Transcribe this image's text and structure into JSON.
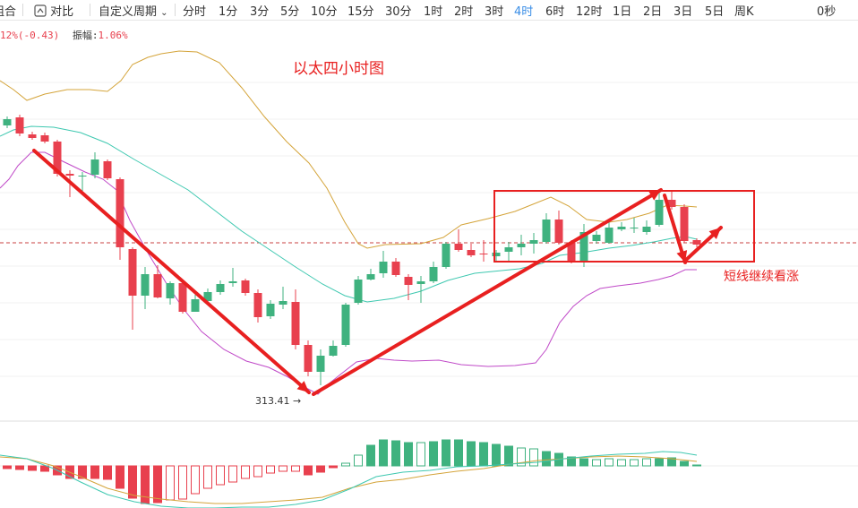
{
  "toolbar": {
    "left_label": "组合",
    "compare_label": "对比",
    "custom_period": "自定义周期",
    "periods": [
      "分时",
      "1分",
      "3分",
      "5分",
      "10分",
      "15分",
      "30分",
      "1时",
      "2时",
      "3时",
      "4时",
      "6时",
      "12时",
      "1日",
      "2日",
      "3日",
      "5日",
      "周K"
    ],
    "active_period": "4时",
    "right_label": "0秒"
  },
  "info": {
    "change": "12%(-0.43)",
    "amplitude_label": "振幅:",
    "amplitude_value": "1.06%"
  },
  "annotations": {
    "title": "以太四小时图",
    "note": "短线继续看涨",
    "low_label": "313.41 →"
  },
  "colors": {
    "up": "#3fb27f",
    "down": "#e8404e",
    "boll_upper": "#d4a43a",
    "boll_mid": "#3ec8b0",
    "boll_lower": "#c04ac8",
    "annotation": "#e82020",
    "active": "#3a8ee6"
  }
}
